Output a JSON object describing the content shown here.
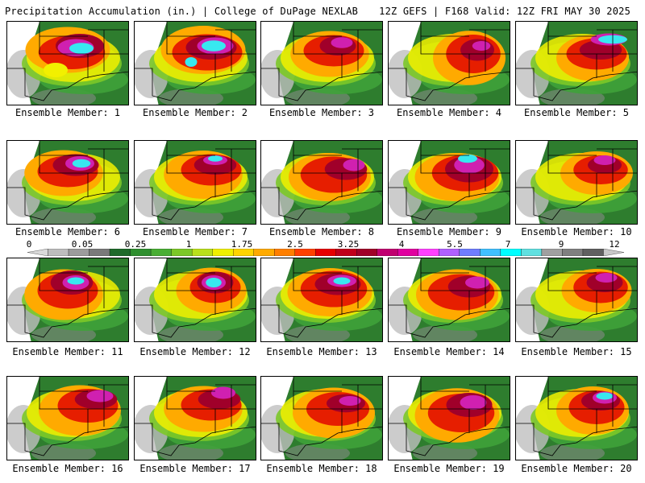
{
  "header": {
    "title": "Precipitation Accumulation (in.) | College of DuPage NEXLAB",
    "run_info": "12Z GEFS | F168 Valid: 12Z FRI MAY 30 2025"
  },
  "members": [
    {
      "label": "Ensemble Member: 1"
    },
    {
      "label": "Ensemble Member: 2"
    },
    {
      "label": "Ensemble Member: 3"
    },
    {
      "label": "Ensemble Member: 4"
    },
    {
      "label": "Ensemble Member: 5"
    },
    {
      "label": "Ensemble Member: 6"
    },
    {
      "label": "Ensemble Member: 7"
    },
    {
      "label": "Ensemble Member: 8"
    },
    {
      "label": "Ensemble Member: 9"
    },
    {
      "label": "Ensemble Member: 10"
    },
    {
      "label": "Ensemble Member: 11"
    },
    {
      "label": "Ensemble Member: 12"
    },
    {
      "label": "Ensemble Member: 13"
    },
    {
      "label": "Ensemble Member: 14"
    },
    {
      "label": "Ensemble Member: 15"
    },
    {
      "label": "Ensemble Member: 16"
    },
    {
      "label": "Ensemble Member: 17"
    },
    {
      "label": "Ensemble Member: 18"
    },
    {
      "label": "Ensemble Member: 19"
    },
    {
      "label": "Ensemble Member: 20"
    }
  ],
  "legend": {
    "tick_labels": [
      "0",
      "0.05",
      "0.25",
      "1",
      "1.75",
      "2.5",
      "3.25",
      "4",
      "5.5",
      "7",
      "9",
      "12"
    ],
    "colors": [
      "#d9d9d9",
      "#bdbdbd",
      "#9c9c9c",
      "#7a7a7a",
      "#1f6a2a",
      "#2f8f2f",
      "#49ae34",
      "#7cc828",
      "#b9e01c",
      "#f0f000",
      "#ffd400",
      "#ffaa00",
      "#ff7f00",
      "#ff4000",
      "#e60000",
      "#c0001a",
      "#a00028",
      "#c00070",
      "#e000a0",
      "#ff40ff",
      "#b060ff",
      "#6f7dff",
      "#40c0ff",
      "#00ffff",
      "#60e0e0",
      "#a0a0a0",
      "#808080",
      "#606060",
      "#c8c8c8"
    ]
  },
  "precip_palette": {
    "light_gray": "#bfbfbf",
    "gray": "#8c8c8c",
    "green_dark": "#2e7d2e",
    "green": "#3fa23a",
    "green_light": "#7cc828",
    "yellow": "#f2f000",
    "orange": "#ffaa00",
    "red": "#e61e00",
    "dark_red": "#a0002a",
    "magenta": "#d020b0",
    "purple": "#9b4dff",
    "cyan": "#38e8f0"
  }
}
